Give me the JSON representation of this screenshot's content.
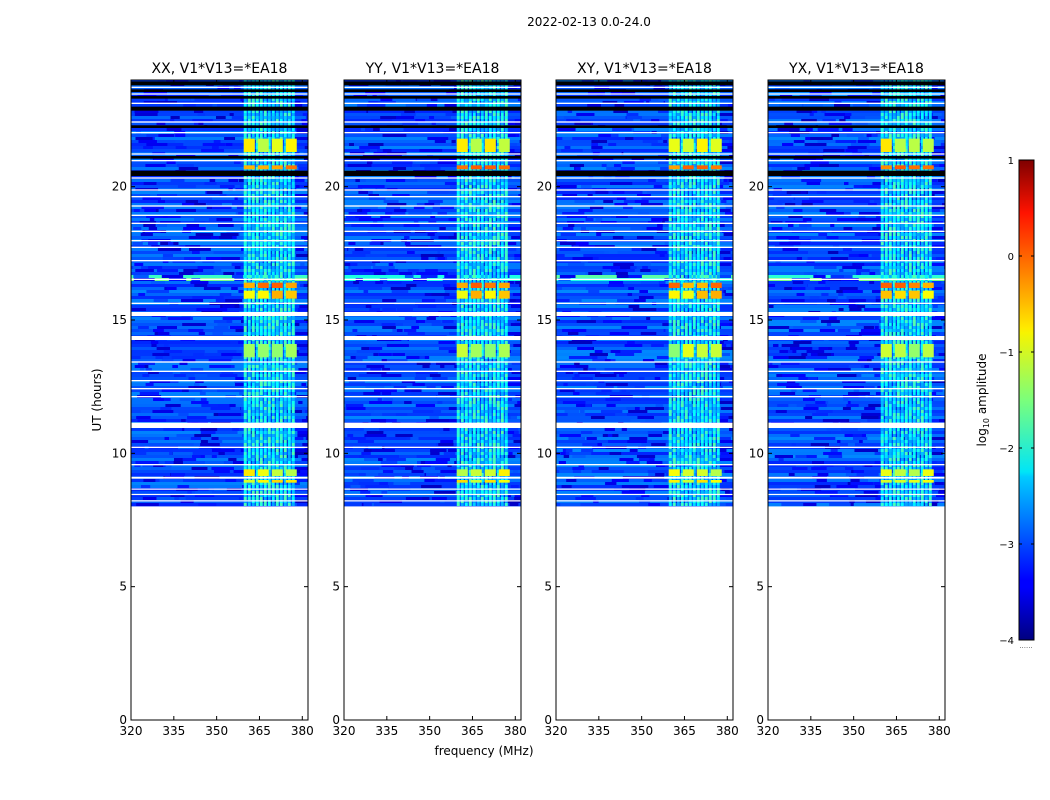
{
  "figure": {
    "suptitle": "2022-02-13 0.0-24.0",
    "xlabel": "frequency (MHz)",
    "ylabel": "UT (hours)"
  },
  "colorbar": {
    "label_pre": "log",
    "label_sub": "10",
    "label_post": " amplitude",
    "ticks": [
      "1",
      "0",
      "−1",
      "−2",
      "−3",
      "−4"
    ],
    "range": [
      -4,
      1
    ],
    "colormap": "jet",
    "under_marker": "......"
  },
  "chart_data": {
    "type": "heatmap",
    "x_range": [
      320,
      382
    ],
    "y_range": [
      0,
      24
    ],
    "x_ticks": [
      320,
      335,
      350,
      365,
      380
    ],
    "y_ticks": [
      0,
      5,
      10,
      15,
      20
    ],
    "data_start_hour": 8.1,
    "band_region_mhz": [
      359.5,
      377.5
    ],
    "panels": [
      {
        "title": "XX, V1*V13=*EA18"
      },
      {
        "title": "YY, V1*V13=*EA18"
      },
      {
        "title": "XY, V1*V13=*EA18"
      },
      {
        "title": "YX, V1*V13=*EA18"
      }
    ],
    "strong_rows_hours": [
      {
        "start": 8.9,
        "end": 9.0,
        "value": -0.9
      },
      {
        "start": 9.15,
        "end": 9.4,
        "value": -1.0
      },
      {
        "start": 13.6,
        "end": 14.1,
        "value": -1.2
      },
      {
        "start": 15.8,
        "end": 16.1,
        "value": -0.7
      },
      {
        "start": 16.2,
        "end": 16.4,
        "value": -0.3
      },
      {
        "start": 20.65,
        "end": 20.8,
        "value": -0.3
      },
      {
        "start": 21.3,
        "end": 21.8,
        "value": -1.0
      }
    ],
    "gap_rows_hours": [
      [
        8.2,
        8.24
      ],
      [
        8.45,
        8.48
      ],
      [
        8.65,
        8.68
      ],
      [
        9.05,
        9.12
      ],
      [
        9.55,
        9.6
      ],
      [
        10.2,
        10.25
      ],
      [
        10.95,
        11.15
      ],
      [
        12.1,
        12.15
      ],
      [
        12.4,
        12.45
      ],
      [
        12.7,
        12.75
      ],
      [
        13.05,
        13.1
      ],
      [
        13.4,
        13.45
      ],
      [
        14.25,
        14.4
      ],
      [
        15.15,
        15.3
      ],
      [
        15.6,
        15.65
      ],
      [
        16.5,
        16.55
      ],
      [
        17.2,
        17.25
      ],
      [
        17.7,
        17.75
      ],
      [
        17.95,
        18.0
      ],
      [
        18.3,
        18.35
      ],
      [
        18.6,
        18.65
      ],
      [
        18.9,
        18.95
      ],
      [
        19.25,
        19.3
      ],
      [
        19.6,
        19.65
      ],
      [
        19.85,
        19.9
      ],
      [
        20.3,
        20.35
      ],
      [
        20.95,
        21.0
      ],
      [
        21.2,
        21.25
      ],
      [
        22.0,
        22.05
      ],
      [
        22.4,
        22.45
      ],
      [
        23.1,
        23.15
      ],
      [
        23.45,
        23.5
      ],
      [
        23.7,
        23.75
      ]
    ],
    "dark_rows_hours": [
      [
        20.4,
        20.6
      ],
      [
        21.05,
        21.15
      ],
      [
        22.2,
        22.3
      ],
      [
        22.85,
        23.0
      ],
      [
        23.3,
        23.4
      ],
      [
        23.55,
        23.65
      ],
      [
        23.8,
        23.95
      ]
    ]
  }
}
